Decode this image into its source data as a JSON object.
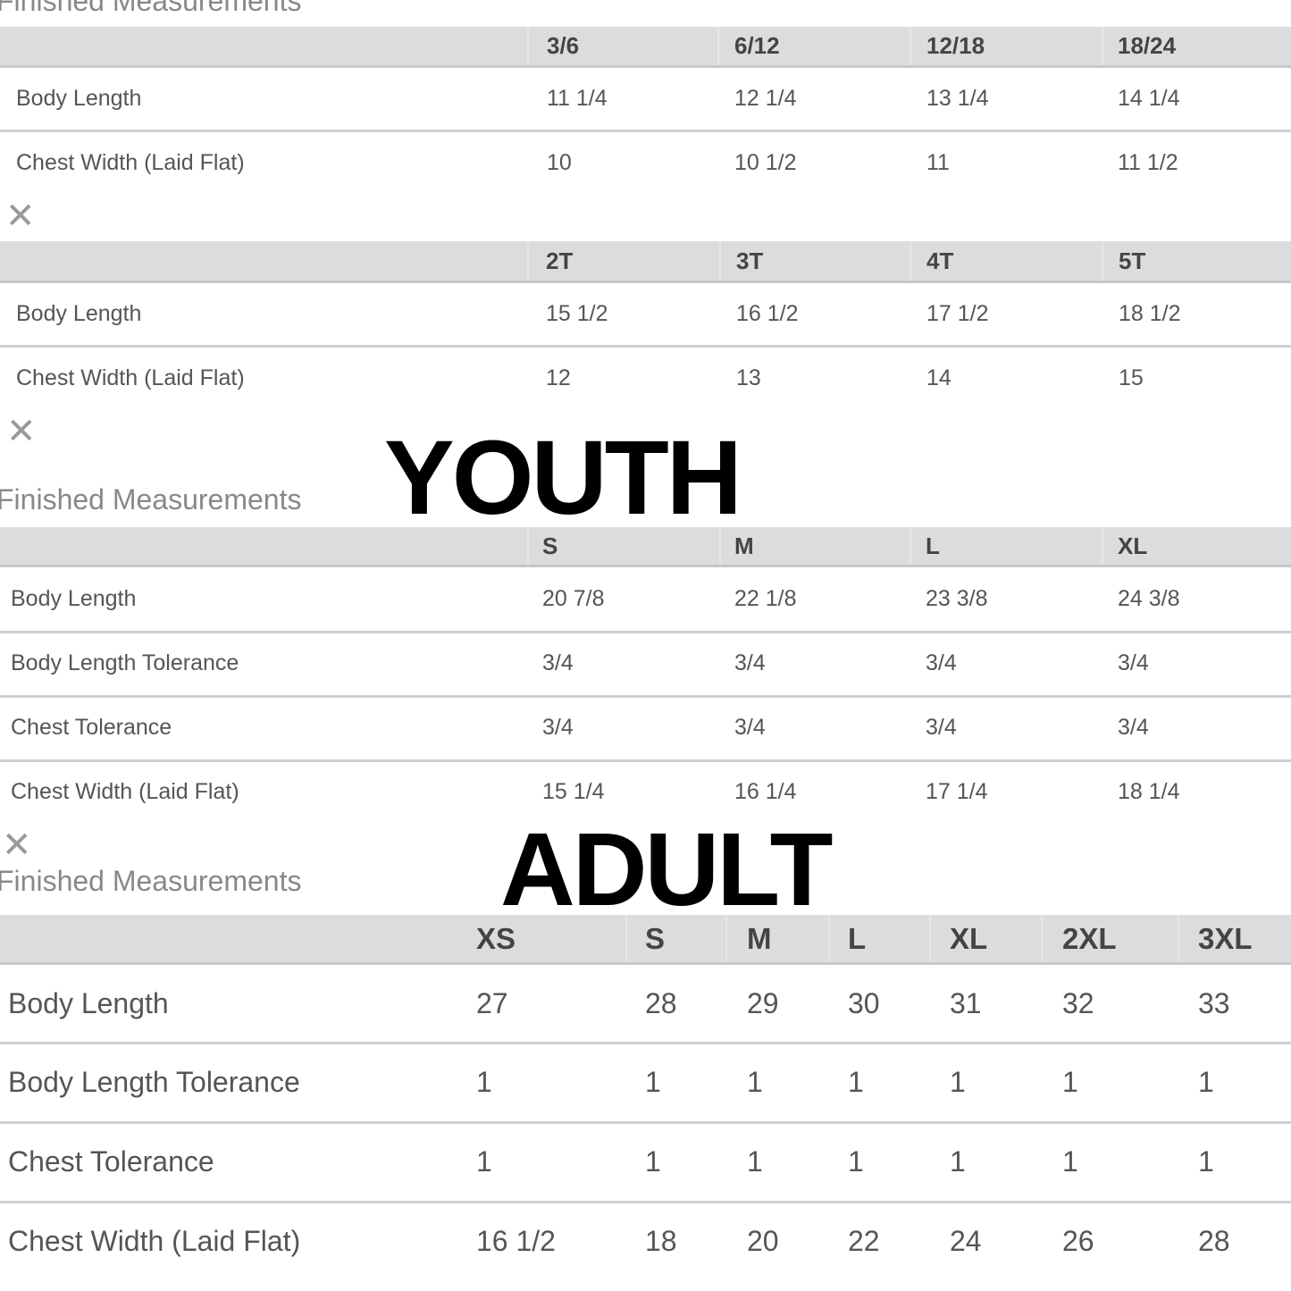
{
  "sections": [
    {
      "title": "Finished Measurements",
      "headers": [
        "3/6",
        "6/12",
        "12/18",
        "18/24"
      ],
      "rows": [
        {
          "label": "Body Length",
          "values": [
            "11 1/4",
            "12 1/4",
            "13 1/4",
            "14 1/4"
          ]
        },
        {
          "label": "Chest Width (Laid Flat)",
          "values": [
            "10",
            "10 1/2",
            "11",
            "11 1/2"
          ]
        }
      ]
    },
    {
      "headers": [
        "2T",
        "3T",
        "4T",
        "5T"
      ],
      "rows": [
        {
          "label": "Body Length",
          "values": [
            "15 1/2",
            "16 1/2",
            "17 1/2",
            "18 1/2"
          ]
        },
        {
          "label": "Chest Width (Laid Flat)",
          "values": [
            "12",
            "13",
            "14",
            "15"
          ]
        }
      ]
    },
    {
      "title": "Finished Measurements",
      "overlay": "YOUTH",
      "headers": [
        "S",
        "M",
        "L",
        "XL"
      ],
      "rows": [
        {
          "label": "Body Length",
          "values": [
            "20 7/8",
            "22 1/8",
            "23 3/8",
            "24 3/8"
          ]
        },
        {
          "label": "Body Length Tolerance",
          "values": [
            "3/4",
            "3/4",
            "3/4",
            "3/4"
          ]
        },
        {
          "label": "Chest Tolerance",
          "values": [
            "3/4",
            "3/4",
            "3/4",
            "3/4"
          ]
        },
        {
          "label": "Chest Width (Laid Flat)",
          "values": [
            "15 1/4",
            "16 1/4",
            "17 1/4",
            "18 1/4"
          ]
        }
      ]
    },
    {
      "title": "Finished Measurements",
      "overlay": "ADULT",
      "headers": [
        "XS",
        "S",
        "M",
        "L",
        "XL",
        "2XL",
        "3XL"
      ],
      "rows": [
        {
          "label": "Body Length",
          "values": [
            "27",
            "28",
            "29",
            "30",
            "31",
            "32",
            "33"
          ]
        },
        {
          "label": "Body Length Tolerance",
          "values": [
            "1",
            "1",
            "1",
            "1",
            "1",
            "1",
            "1"
          ]
        },
        {
          "label": "Chest Tolerance",
          "values": [
            "1",
            "1",
            "1",
            "1",
            "1",
            "1",
            "1"
          ]
        },
        {
          "label": "Chest Width (Laid Flat)",
          "values": [
            "16 1/2",
            "18",
            "20",
            "22",
            "24",
            "26",
            "28"
          ]
        }
      ]
    }
  ],
  "icons": {
    "close": "close-icon"
  }
}
